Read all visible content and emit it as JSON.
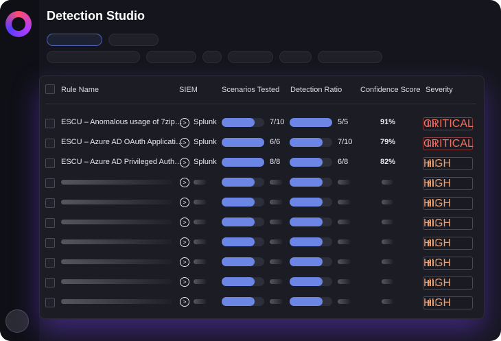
{
  "header": {
    "title": "Detection Studio"
  },
  "table": {
    "columns": [
      "Rule Name",
      "SIEM",
      "Scenarios Tested",
      "Detection Ratio",
      "Confidence Score",
      "Severity"
    ],
    "rows": [
      {
        "name": "ESCU – Anomalous usage of 7zip…",
        "siem": "Splunk",
        "scenarios": "7/10",
        "ratio": "5/5",
        "confidence": "91%",
        "severity": "CRITICAL"
      },
      {
        "name": "ESCU – Azure AD OAuth Applicati…",
        "siem": "Splunk",
        "scenarios": "6/6",
        "ratio": "7/10",
        "confidence": "79%",
        "severity": "CRITICAL"
      },
      {
        "name": "ESCU – Azure AD Privileged Auth…",
        "siem": "Splunk",
        "scenarios": "8/8",
        "ratio": "6/8",
        "confidence": "82%",
        "severity": "HIGH"
      },
      {
        "severity": "HIGH"
      },
      {
        "severity": "HIGH"
      },
      {
        "severity": "HIGH"
      },
      {
        "severity": "HIGH"
      },
      {
        "severity": "HIGH"
      },
      {
        "severity": "HIGH"
      },
      {
        "severity": "HIGH"
      }
    ]
  }
}
